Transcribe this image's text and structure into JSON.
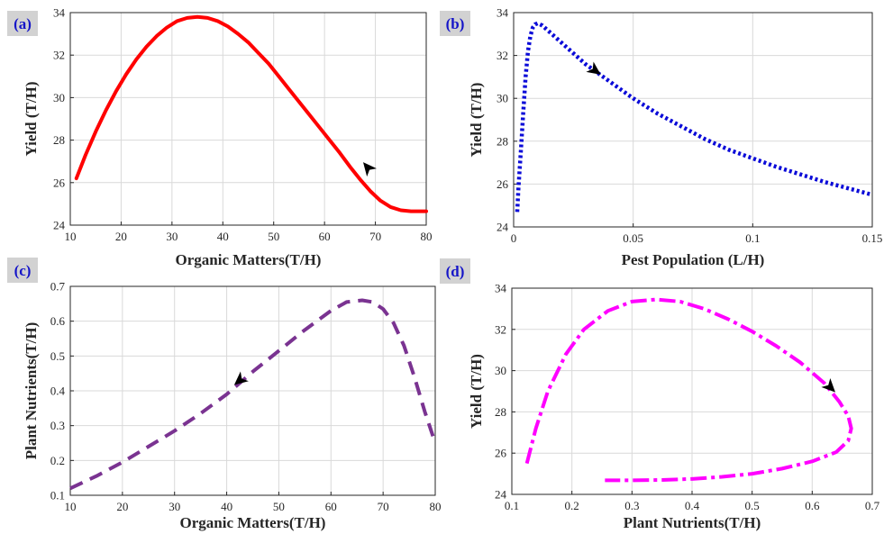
{
  "colors": {
    "a": "#ff0000",
    "b": "#0a0ad8",
    "c": "#7a3391",
    "d": "#ff00ff",
    "grid": "#d9d9d9",
    "axis": "#262626",
    "panel_label": "#1515c8",
    "panel_label_bg": "#d2d2d2"
  },
  "chart_data": [
    {
      "id": "a",
      "panel_label": "(a)",
      "type": "line",
      "line_style": "solid",
      "xlabel": "Organic Matters(T/H)",
      "ylabel": "Yield (T/H)",
      "xlim": [
        10,
        80
      ],
      "ylim": [
        24,
        34
      ],
      "xticks": [
        "10",
        "20",
        "30",
        "40",
        "50",
        "60",
        "70",
        "80"
      ],
      "yticks": [
        "24",
        "26",
        "28",
        "30",
        "32",
        "34"
      ],
      "grid": true,
      "x": [
        11.2,
        13,
        15,
        17,
        19,
        21,
        23,
        25,
        27,
        29,
        31,
        33,
        35,
        37,
        39,
        41,
        43,
        45,
        47,
        49,
        51,
        53,
        55,
        57,
        59,
        61,
        63,
        65,
        67,
        69,
        71,
        73,
        75,
        77,
        78.5,
        80
      ],
      "y": [
        26.2,
        27.3,
        28.4,
        29.4,
        30.3,
        31.1,
        31.8,
        32.4,
        32.9,
        33.3,
        33.6,
        33.75,
        33.8,
        33.75,
        33.6,
        33.35,
        33.0,
        32.6,
        32.1,
        31.6,
        31.0,
        30.4,
        29.8,
        29.2,
        28.6,
        28.0,
        27.4,
        26.75,
        26.15,
        25.6,
        25.15,
        24.85,
        24.7,
        24.65,
        24.65,
        24.65
      ],
      "arrow": {
        "x": 68.5,
        "y": 26.7
      }
    },
    {
      "id": "b",
      "panel_label": "(b)",
      "type": "line",
      "line_style": "dotted",
      "xlabel": "Pest Population (L/H)",
      "ylabel": "Yield (T/H)",
      "xlim": [
        0,
        0.15
      ],
      "ylim": [
        24,
        34
      ],
      "xticks": [
        "0",
        "0.05",
        "0.1",
        "0.15"
      ],
      "yticks": [
        "24",
        "26",
        "28",
        "30",
        "32",
        "34"
      ],
      "grid": true,
      "x": [
        0.0015,
        0.002,
        0.003,
        0.004,
        0.005,
        0.006,
        0.007,
        0.008,
        0.009,
        0.01,
        0.012,
        0.015,
        0.02,
        0.025,
        0.03,
        0.035,
        0.04,
        0.05,
        0.06,
        0.07,
        0.08,
        0.09,
        0.1,
        0.11,
        0.12,
        0.13,
        0.14,
        0.15
      ],
      "y": [
        24.7,
        25.8,
        27.5,
        29.3,
        31.0,
        32.2,
        32.9,
        33.3,
        33.45,
        33.5,
        33.4,
        33.1,
        32.6,
        32.1,
        31.6,
        31.2,
        30.8,
        30.0,
        29.3,
        28.7,
        28.1,
        27.6,
        27.2,
        26.8,
        26.45,
        26.1,
        25.8,
        25.5
      ],
      "arrow": {
        "x": 0.034,
        "y": 31.3
      }
    },
    {
      "id": "c",
      "panel_label": "(c)",
      "type": "line",
      "line_style": "dashed",
      "xlabel": "Organic Matters(T/H)",
      "ylabel": "Plant Nutrients(T/H)",
      "xlim": [
        10,
        80
      ],
      "ylim": [
        0.1,
        0.7
      ],
      "xticks": [
        "10",
        "20",
        "30",
        "40",
        "50",
        "60",
        "70",
        "80"
      ],
      "yticks": [
        "0.1",
        "0.2",
        "0.3",
        "0.4",
        "0.5",
        "0.6",
        "0.7"
      ],
      "grid": true,
      "x": [
        10,
        15,
        20,
        25,
        30,
        35,
        40,
        45,
        50,
        55,
        60,
        63,
        66,
        68,
        70,
        72,
        74,
        76,
        78,
        80
      ],
      "y": [
        0.12,
        0.155,
        0.195,
        0.24,
        0.285,
        0.335,
        0.39,
        0.455,
        0.515,
        0.575,
        0.63,
        0.655,
        0.66,
        0.655,
        0.635,
        0.595,
        0.53,
        0.44,
        0.34,
        0.25
      ],
      "arrow": {
        "x": 42.5,
        "y": 0.43
      }
    },
    {
      "id": "d",
      "panel_label": "(d)",
      "type": "line",
      "line_style": "dash-dot",
      "xlabel": "Plant Nutrients(T/H)",
      "ylabel": "Yield (T/H)",
      "xlim": [
        0.1,
        0.7
      ],
      "ylim": [
        24,
        34
      ],
      "xticks": [
        "0.1",
        "0.2",
        "0.3",
        "0.4",
        "0.5",
        "0.6",
        "0.7"
      ],
      "yticks": [
        "24",
        "26",
        "28",
        "30",
        "32",
        "34"
      ],
      "grid": true,
      "x": [
        0.125,
        0.14,
        0.16,
        0.19,
        0.22,
        0.26,
        0.3,
        0.34,
        0.38,
        0.42,
        0.46,
        0.5,
        0.54,
        0.58,
        0.62,
        0.645,
        0.66,
        0.665,
        0.66,
        0.64,
        0.6,
        0.55,
        0.5,
        0.45,
        0.4,
        0.35,
        0.3,
        0.255
      ],
      "y": [
        25.5,
        27.2,
        29.0,
        30.8,
        32.0,
        32.9,
        33.35,
        33.45,
        33.35,
        33.0,
        32.5,
        31.9,
        31.2,
        30.4,
        29.4,
        28.5,
        27.8,
        27.2,
        26.6,
        26.05,
        25.6,
        25.25,
        25.0,
        24.85,
        24.75,
        24.7,
        24.68,
        24.68
      ],
      "arrow": {
        "x": 0.63,
        "y": 29.2
      }
    }
  ]
}
